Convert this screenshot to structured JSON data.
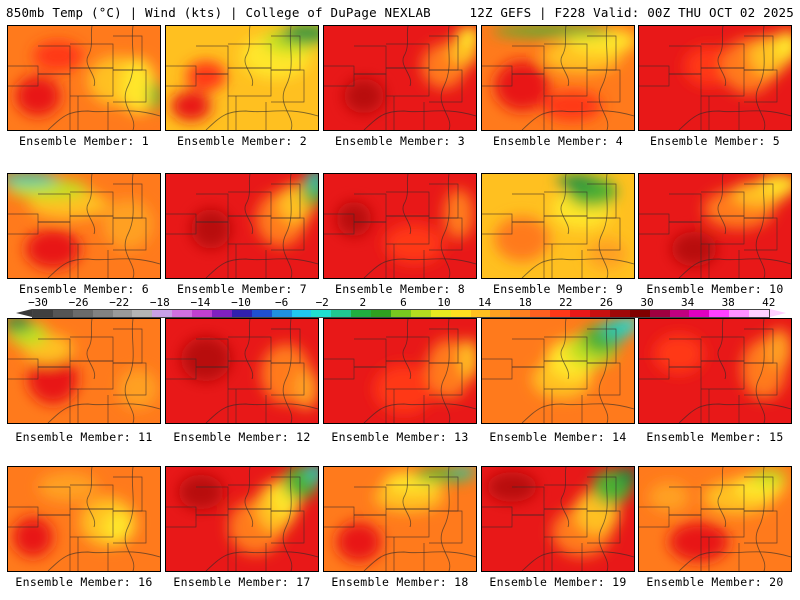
{
  "header": {
    "left": "850mb Temp (°C) | Wind (kts) | College of DuPage NEXLAB",
    "right": "12Z GEFS | F228 Valid: 00Z THU OCT 02 2025"
  },
  "colorbar": {
    "labels": [
      "−30",
      "−26",
      "−22",
      "−18",
      "−14",
      "−10",
      "−6",
      "−2",
      "2",
      "6",
      "10",
      "14",
      "18",
      "22",
      "26",
      "30",
      "34",
      "38",
      "42"
    ],
    "colors": [
      "#3f3f3f",
      "#555555",
      "#6b6b6b",
      "#828282",
      "#9a9a9a",
      "#b4b4b4",
      "#c8a0e6",
      "#d070e0",
      "#c040d0",
      "#8020c0",
      "#3020b0",
      "#2050d0",
      "#2090e0",
      "#20c8f0",
      "#20e0d0",
      "#20c890",
      "#20b040",
      "#30a020",
      "#78c820",
      "#b4dc20",
      "#e6ec20",
      "#ffe020",
      "#ffc020",
      "#ffa020",
      "#ff8020",
      "#ff6020",
      "#ff3818",
      "#e81818",
      "#c81010",
      "#a00808",
      "#800000",
      "#a00040",
      "#c00080",
      "#e000c0",
      "#ff40ff",
      "#ff90ff",
      "#ffd0ff"
    ]
  },
  "palette": {
    "deep_red": "#b80808",
    "red": "#e81818",
    "red_orange": "#ff3818",
    "orange": "#ff7a1c",
    "light_orange": "#ffa020",
    "amber": "#ffc020",
    "yellow": "#ffe62a",
    "lime": "#c0e020",
    "green": "#50b030",
    "dark_green": "#1f9040",
    "teal": "#20c8b0",
    "cyan": "#20e0e0"
  },
  "members": [
    {
      "label": "Ensemble Member: 1"
    },
    {
      "label": "Ensemble Member: 2"
    },
    {
      "label": "Ensemble Member: 3"
    },
    {
      "label": "Ensemble Member: 4"
    },
    {
      "label": "Ensemble Member: 5"
    },
    {
      "label": "Ensemble Member: 6"
    },
    {
      "label": "Ensemble Member: 7"
    },
    {
      "label": "Ensemble Member: 8"
    },
    {
      "label": "Ensemble Member: 9"
    },
    {
      "label": "Ensemble Member: 10"
    },
    {
      "label": "Ensemble Member: 11"
    },
    {
      "label": "Ensemble Member: 12"
    },
    {
      "label": "Ensemble Member: 13"
    },
    {
      "label": "Ensemble Member: 14"
    },
    {
      "label": "Ensemble Member: 15"
    },
    {
      "label": "Ensemble Member: 16"
    },
    {
      "label": "Ensemble Member: 17"
    },
    {
      "label": "Ensemble Member: 18"
    },
    {
      "label": "Ensemble Member: 19"
    },
    {
      "label": "Ensemble Member: 20"
    }
  ]
}
